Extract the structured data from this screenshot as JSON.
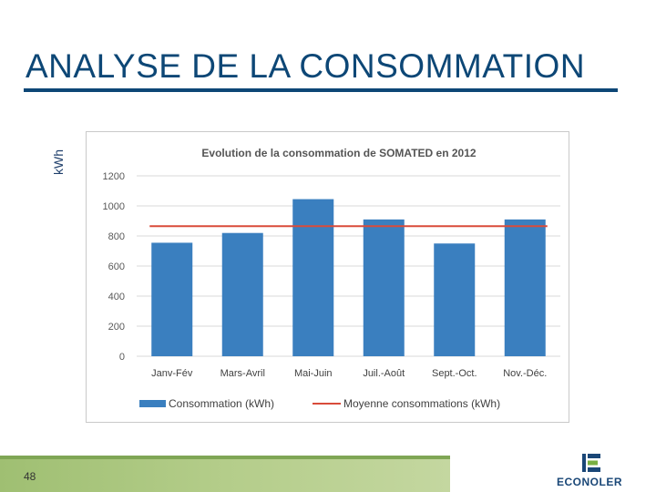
{
  "slide": {
    "title": "ANALYSE DE LA CONSOMMATION",
    "page_number": "48",
    "logo_text": "ECONOLER"
  },
  "colors": {
    "title": "#0d4776",
    "bar": "#3a7fbf",
    "average_line": "#d94b3a",
    "footer": "#a9c77d"
  },
  "chart_data": {
    "type": "bar",
    "title": "Evolution de la consommation de SOMATED en 2012",
    "ylabel": "kWh",
    "categories": [
      "Janv-Fév",
      "Mars-Avril",
      "Mai-Juin",
      "Juil.-Août",
      "Sept.-Oct.",
      "Nov.-Déc."
    ],
    "series": [
      {
        "name": "Consommation (kWh)",
        "type": "bar",
        "values": [
          755,
          820,
          1045,
          910,
          750,
          910
        ]
      },
      {
        "name": "Moyenne consommations (kWh)",
        "type": "line",
        "values": [
          865,
          865,
          865,
          865,
          865,
          865
        ]
      }
    ],
    "ylim": [
      0,
      1200
    ],
    "yticks": [
      0,
      200,
      400,
      600,
      800,
      1000,
      1200
    ],
    "grid": true,
    "legend": "bottom"
  }
}
